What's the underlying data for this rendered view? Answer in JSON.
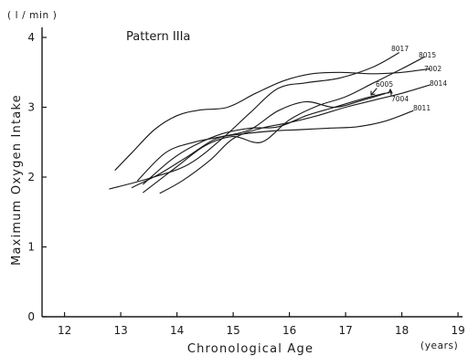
{
  "chart_data": {
    "type": "line",
    "title": "Pattern IIIa",
    "xlabel": "Chronological Age",
    "xunit": "(years)",
    "ylabel": "Maximum Oxygen Intake",
    "yunit": "( l / min )",
    "xlim": [
      11.6,
      19.3
    ],
    "ylim": [
      0,
      4.2
    ],
    "xticks": [
      12,
      13,
      14,
      15,
      16,
      17,
      18,
      19
    ],
    "yticks": [
      1,
      2,
      3,
      4
    ],
    "grid": false,
    "series": [
      {
        "name": "8017",
        "x": [
          12.8,
          13.5,
          14.2,
          14.8,
          15.3,
          15.8,
          16.3,
          16.9,
          17.5,
          17.95
        ],
        "y": [
          1.83,
          1.98,
          2.18,
          2.55,
          2.92,
          3.27,
          3.35,
          3.42,
          3.58,
          3.78
        ]
      },
      {
        "name": "8015",
        "x": [
          13.4,
          14.0,
          14.5,
          15.0,
          15.5,
          16.0,
          16.5,
          17.0,
          17.5,
          18.0,
          18.4
        ],
        "y": [
          1.78,
          2.15,
          2.45,
          2.58,
          2.5,
          2.82,
          3.02,
          3.15,
          3.35,
          3.55,
          3.72
        ]
      },
      {
        "name": "7002",
        "x": [
          12.9,
          13.2,
          13.6,
          14.0,
          14.4,
          14.9,
          15.4,
          15.9,
          16.4,
          16.9,
          17.5,
          18.0,
          18.5
        ],
        "y": [
          2.1,
          2.35,
          2.68,
          2.88,
          2.96,
          3.0,
          3.2,
          3.38,
          3.48,
          3.5,
          3.48,
          3.5,
          3.55
        ]
      },
      {
        "name": "8014",
        "x": [
          13.7,
          14.1,
          14.6,
          15.0,
          15.5,
          16.0,
          16.5,
          17.0,
          17.5,
          18.0,
          18.5
        ],
        "y": [
          1.77,
          1.95,
          2.25,
          2.55,
          2.7,
          2.78,
          2.88,
          3.0,
          3.1,
          3.2,
          3.32
        ]
      },
      {
        "name": "6005",
        "x": [
          13.4,
          13.9,
          14.3,
          14.8,
          15.3,
          15.8,
          16.3,
          16.8,
          17.3,
          17.7
        ],
        "y": [
          1.9,
          2.25,
          2.45,
          2.62,
          2.7,
          2.72,
          2.88,
          3.0,
          3.12,
          3.2
        ]
      },
      {
        "name": "7004",
        "x": [
          13.3,
          13.8,
          14.3,
          14.8,
          15.3,
          15.8,
          16.3,
          16.8,
          17.3,
          17.8
        ],
        "y": [
          1.95,
          2.35,
          2.5,
          2.58,
          2.68,
          2.95,
          3.08,
          3.0,
          3.1,
          3.22
        ]
      },
      {
        "name": "8011",
        "x": [
          13.2,
          13.7,
          14.2,
          14.7,
          15.2,
          15.7,
          16.2,
          16.7,
          17.2,
          17.7,
          18.2
        ],
        "y": [
          1.85,
          2.05,
          2.3,
          2.55,
          2.62,
          2.66,
          2.68,
          2.7,
          2.72,
          2.8,
          2.95
        ]
      }
    ]
  }
}
